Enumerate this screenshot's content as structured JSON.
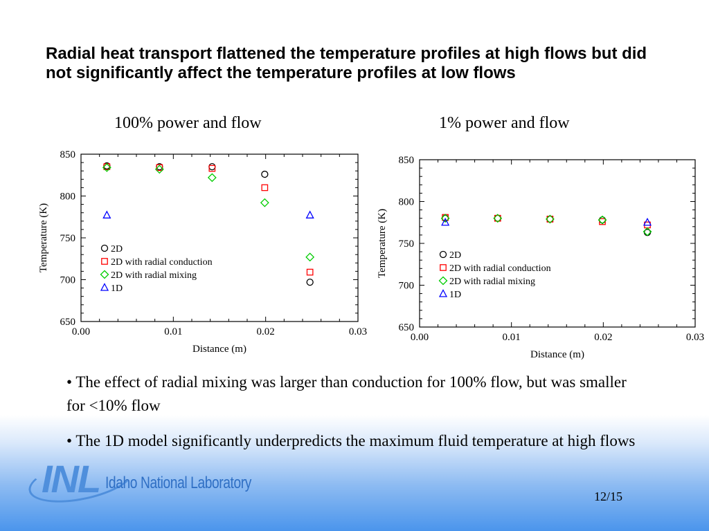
{
  "slide": {
    "title": "Radial heat transport flattened the temperature profiles at high flows but did not significantly affect the temperature profiles at low flows",
    "bullets": [
      "• The effect of radial mixing was larger than conduction for 100% flow, but was smaller for <10% flow",
      "• The 1D model significantly underpredicts the maximum fluid temperature at high flows"
    ],
    "logo": {
      "mark": "INL",
      "name": "Idaho National Laboratory"
    },
    "page_number": "12/15"
  },
  "chart_data": [
    {
      "type": "scatter",
      "caption": "100% power and flow",
      "xlabel": "Distance (m)",
      "ylabel": "Temperature (K)",
      "xlim": [
        0,
        0.03
      ],
      "ylim": [
        650,
        850
      ],
      "xticks": [
        "0.00",
        "0.01",
        "0.02",
        "0.03"
      ],
      "yticks": [
        "650",
        "700",
        "750",
        "800",
        "850"
      ],
      "legend_position": "bottom-left",
      "series": [
        {
          "name": "2D",
          "marker": "circle",
          "color": "#000000",
          "x": [
            0.0028,
            0.0085,
            0.0142,
            0.0199,
            0.0248
          ],
          "y": [
            836,
            835,
            835,
            826,
            697
          ]
        },
        {
          "name": "2D with radial conduction",
          "marker": "square",
          "color": "#ff0000",
          "x": [
            0.0028,
            0.0085,
            0.0142,
            0.0199,
            0.0248
          ],
          "y": [
            835,
            834,
            833,
            810,
            709
          ]
        },
        {
          "name": "2D with radial mixing",
          "marker": "diamond",
          "color": "#00cc00",
          "x": [
            0.0028,
            0.0085,
            0.0142,
            0.0199,
            0.0248
          ],
          "y": [
            834,
            832,
            822,
            792,
            727
          ]
        },
        {
          "name": "1D",
          "marker": "triangle",
          "color": "#0000ff",
          "x": [
            0.0028,
            0.0248
          ],
          "y": [
            777,
            777
          ]
        }
      ]
    },
    {
      "type": "scatter",
      "caption": "1% power and flow",
      "xlabel": "Distance (m)",
      "ylabel": "Temperature (K)",
      "xlim": [
        0,
        0.03
      ],
      "ylim": [
        650,
        850
      ],
      "xticks": [
        "0.00",
        "0.01",
        "0.02",
        "0.03"
      ],
      "yticks": [
        "650",
        "700",
        "750",
        "800",
        "850"
      ],
      "legend_position": "bottom-left",
      "series": [
        {
          "name": "2D",
          "marker": "circle",
          "color": "#000000",
          "x": [
            0.0028,
            0.0085,
            0.0142,
            0.0199,
            0.0248
          ],
          "y": [
            780,
            780,
            779,
            778,
            763
          ]
        },
        {
          "name": "2D with radial conduction",
          "marker": "square",
          "color": "#ff0000",
          "x": [
            0.0028,
            0.0085,
            0.0142,
            0.0199,
            0.0248
          ],
          "y": [
            781,
            780,
            779,
            776,
            772
          ]
        },
        {
          "name": "2D with radial mixing",
          "marker": "diamond",
          "color": "#00cc00",
          "x": [
            0.0028,
            0.0085,
            0.0142,
            0.0199,
            0.0248
          ],
          "y": [
            780,
            780,
            779,
            778,
            764
          ]
        },
        {
          "name": "1D",
          "marker": "triangle",
          "color": "#0000ff",
          "x": [
            0.0028,
            0.0248
          ],
          "y": [
            775,
            775
          ]
        }
      ]
    }
  ]
}
